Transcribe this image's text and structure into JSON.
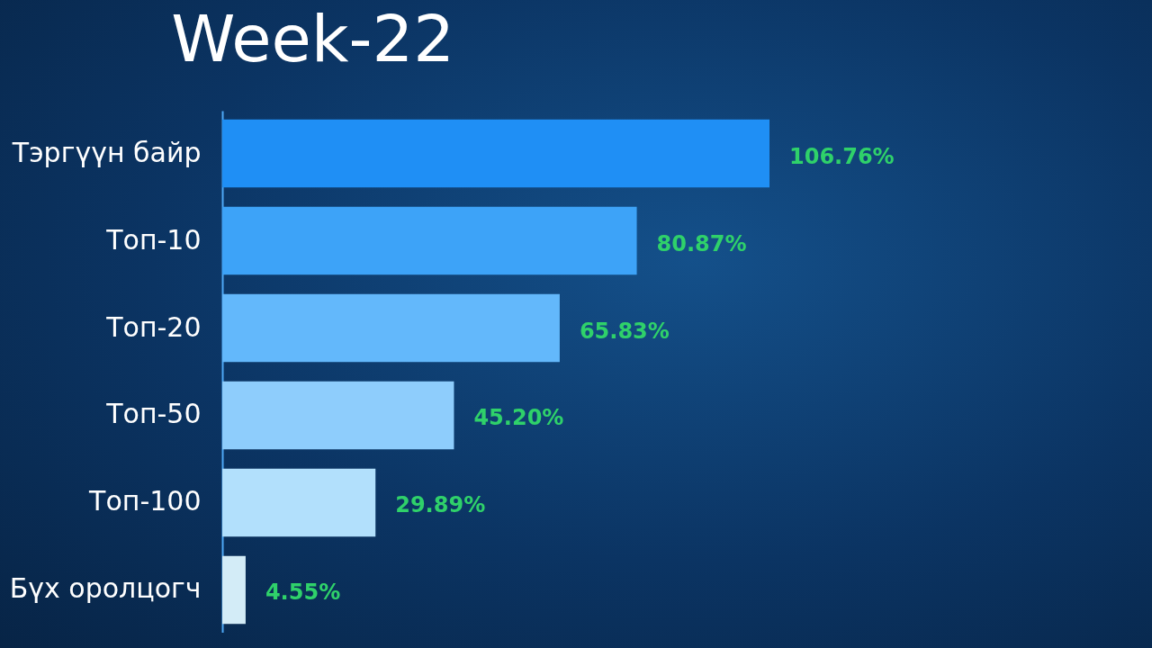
{
  "chart_data": {
    "type": "bar",
    "orientation": "horizontal",
    "title": "Week-22",
    "categories": [
      "Тэргүүн байр",
      "Топ-10",
      "Топ-20",
      "Топ-50",
      "Топ-100",
      "Бүх оролцогч"
    ],
    "values": [
      106.76,
      80.87,
      65.83,
      45.2,
      29.89,
      4.55
    ],
    "colors": [
      "#1f8ff5",
      "#3da3f8",
      "#63b8fb",
      "#8ecdfc",
      "#b2e0fc",
      "#d3ecf7"
    ],
    "value_labels": [
      "106.76%",
      "80.87%",
      "65.83%",
      "45.20%",
      "29.89%",
      "4.55%"
    ]
  }
}
